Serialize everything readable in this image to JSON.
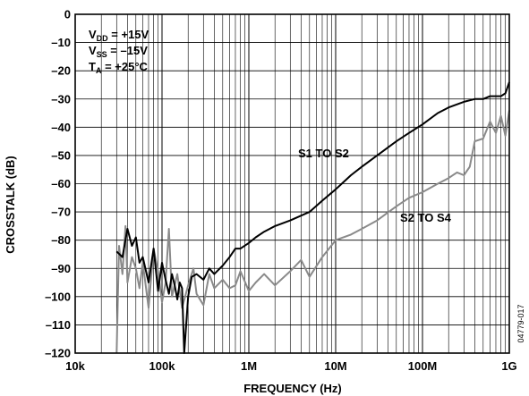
{
  "chart_data": {
    "type": "line",
    "xscale": "log",
    "xlabel": "FREQUENCY (Hz)",
    "ylabel": "CROSSTALK (dB)",
    "xlim": [
      10000,
      1000000000
    ],
    "ylim": [
      -120,
      0
    ],
    "x_ticks": [
      {
        "value": 10000,
        "label": "10k"
      },
      {
        "value": 100000,
        "label": "100k"
      },
      {
        "value": 1000000,
        "label": "1M"
      },
      {
        "value": 10000000,
        "label": "10M"
      },
      {
        "value": 100000000,
        "label": "100M"
      },
      {
        "value": 1000000000,
        "label": "1G"
      }
    ],
    "y_ticks": [
      {
        "value": 0,
        "label": "0"
      },
      {
        "value": -10,
        "label": "–10"
      },
      {
        "value": -20,
        "label": "–20"
      },
      {
        "value": -30,
        "label": "–30"
      },
      {
        "value": -40,
        "label": "–40"
      },
      {
        "value": -50,
        "label": "–50"
      },
      {
        "value": -60,
        "label": "–60"
      },
      {
        "value": -70,
        "label": "–70"
      },
      {
        "value": -80,
        "label": "–80"
      },
      {
        "value": -90,
        "label": "–90"
      },
      {
        "value": -100,
        "label": "–100"
      },
      {
        "value": -110,
        "label": "–110"
      },
      {
        "value": -120,
        "label": "–120"
      }
    ],
    "grid": true,
    "conditions": [
      {
        "main": "V",
        "sub": "DD",
        "rest": " = +15V"
      },
      {
        "main": "V",
        "sub": "SS",
        "rest": " = –15V"
      },
      {
        "main": "T",
        "sub": "A",
        "rest": " = +25°C"
      }
    ],
    "figure_code": "04779-017",
    "series": [
      {
        "name": "S1 TO S2",
        "color": "#000000",
        "x": [
          30000,
          35000,
          40000,
          45000,
          50000,
          55000,
          60000,
          70000,
          80000,
          90000,
          100000,
          110000,
          120000,
          130000,
          140000,
          150000,
          160000,
          170000,
          180000,
          200000,
          220000,
          250000,
          300000,
          350000,
          400000,
          500000,
          600000,
          700000,
          800000,
          1000000,
          1200000,
          1500000,
          2000000,
          3000000,
          5000000,
          7000000,
          10000000,
          15000000,
          20000000,
          30000000,
          50000000,
          70000000,
          100000000,
          150000000,
          200000000,
          300000000,
          400000000,
          500000000,
          600000000,
          700000000,
          800000000,
          900000000,
          1000000000
        ],
        "y": [
          -84,
          -86,
          -76,
          -82,
          -79,
          -88,
          -86,
          -95,
          -83,
          -98,
          -88,
          -94,
          -99,
          -92,
          -96,
          -101,
          -95,
          -97,
          -120,
          -100,
          -93,
          -92,
          -94,
          -90,
          -92,
          -89,
          -86,
          -83,
          -83,
          -81,
          -79,
          -77,
          -75,
          -73,
          -70,
          -66,
          -62,
          -57,
          -54,
          -50,
          -45,
          -42,
          -39,
          -35,
          -33,
          -31,
          -30,
          -30,
          -29,
          -29,
          -29,
          -28,
          -24
        ]
      },
      {
        "name": "S2 TO S4",
        "color": "#8a8a8a",
        "x": [
          30000,
          32000,
          35000,
          38000,
          40000,
          45000,
          50000,
          55000,
          60000,
          70000,
          80000,
          90000,
          100000,
          110000,
          120000,
          130000,
          150000,
          170000,
          200000,
          230000,
          250000,
          300000,
          350000,
          400000,
          500000,
          600000,
          700000,
          800000,
          1000000,
          1200000,
          1500000,
          2000000,
          3000000,
          4000000,
          5000000,
          7000000,
          10000000,
          15000000,
          20000000,
          30000000,
          50000000,
          70000000,
          100000000,
          150000000,
          200000000,
          250000000,
          300000000,
          350000000,
          400000000,
          500000000,
          600000000,
          700000000,
          800000000,
          900000000,
          1000000000
        ],
        "y": [
          -120,
          -82,
          -92,
          -75,
          -95,
          -86,
          -90,
          -97,
          -88,
          -104,
          -83,
          -91,
          -102,
          -95,
          -76,
          -100,
          -92,
          -104,
          -96,
          -90,
          -99,
          -103,
          -92,
          -97,
          -94,
          -97,
          -96,
          -91,
          -98,
          -95,
          -92,
          -96,
          -91,
          -87,
          -93,
          -86,
          -80,
          -78,
          -76,
          -73,
          -68,
          -65,
          -63,
          -60,
          -58,
          -56,
          -57,
          -54,
          -45,
          -44,
          -38,
          -42,
          -36,
          -43,
          -34
        ]
      }
    ]
  }
}
